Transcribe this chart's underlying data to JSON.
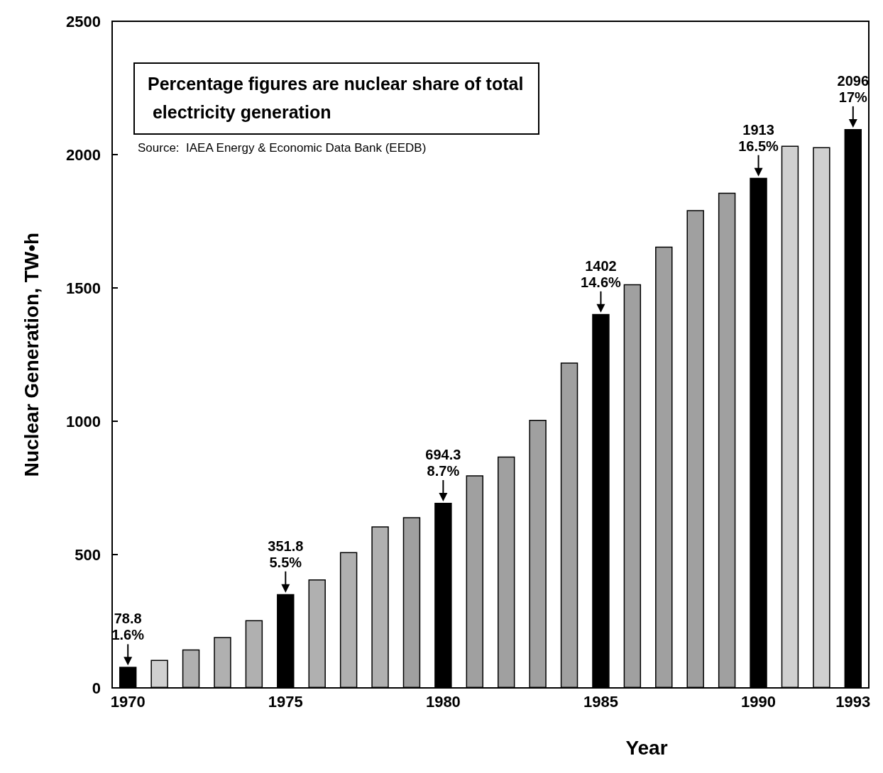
{
  "chart_data": {
    "type": "bar",
    "xlabel": "Year",
    "ylabel": "Nuclear Generation, TW•h",
    "categories": [
      "1970",
      null,
      null,
      null,
      null,
      "1975",
      null,
      null,
      null,
      null,
      "1980",
      null,
      null,
      null,
      null,
      "1985",
      null,
      null,
      null,
      null,
      "1990",
      null,
      null,
      "1993"
    ],
    "values": [
      78.8,
      105,
      144,
      191,
      254,
      351.8,
      407,
      509,
      606,
      640,
      694.3,
      797,
      868,
      1005,
      1220,
      1402,
      1514,
      1655,
      1792,
      1857,
      1913,
      2033,
      2028,
      2096
    ],
    "colors": [
      "#000000",
      "#d0d0d0",
      "#b0b0b0",
      "#b0b0b0",
      "#b0b0b0",
      "#000000",
      "#b0b0b0",
      "#b0b0b0",
      "#b0b0b0",
      "#a0a0a0",
      "#000000",
      "#a0a0a0",
      "#a0a0a0",
      "#a0a0a0",
      "#a0a0a0",
      "#000000",
      "#a0a0a0",
      "#a0a0a0",
      "#a0a0a0",
      "#a0a0a0",
      "#000000",
      "#d0d0d0",
      "#d0d0d0",
      "#000000"
    ],
    "value_labels": [
      "78.8",
      null,
      null,
      null,
      null,
      "351.8",
      null,
      null,
      null,
      null,
      "694.3",
      null,
      null,
      null,
      null,
      "1402",
      null,
      null,
      null,
      null,
      "1913",
      null,
      null,
      "2096"
    ],
    "ylim": [
      0,
      2500
    ],
    "yticks": [
      0,
      500,
      1000,
      1500,
      2000,
      2500
    ],
    "grid": false,
    "data_labels": false,
    "annotations": [
      "Percentage figures are nuclear share of total electricity generation",
      "Source:  IAEA Energy & Economic Data Bank (EEDB)",
      {
        "text": "1.6%",
        "x": "1970",
        "y": 78.8
      },
      {
        "text": "5.5%",
        "x": "1975",
        "y": 351.8
      },
      {
        "text": "8.7%",
        "x": "1980",
        "y": 694.3
      },
      {
        "text": "14.6%",
        "x": "1985",
        "y": 1402
      },
      {
        "text": "16.5%",
        "x": "1990",
        "y": 1913
      },
      {
        "text": "17%",
        "x": "1993",
        "y": 2096
      }
    ]
  }
}
